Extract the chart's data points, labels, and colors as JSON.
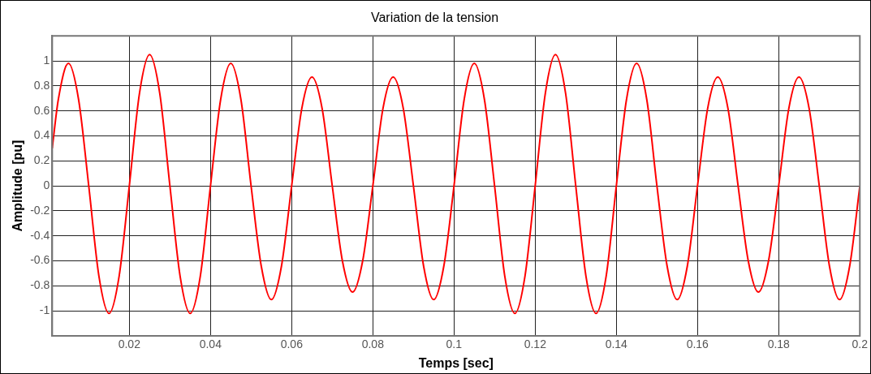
{
  "chart_data": {
    "type": "line",
    "title": "Variation de la tension",
    "xlabel": "Temps [sec]",
    "ylabel": "Amplitude [pu]",
    "xlim": [
      0.001,
      0.2
    ],
    "xticks": [
      0.02,
      0.04,
      0.06,
      0.08,
      0.1,
      0.12,
      0.14,
      0.16,
      0.18,
      0.2
    ],
    "ylim": [
      -1.2,
      1.2
    ],
    "yticks": [
      -1,
      -0.8,
      -0.6,
      -0.4,
      -0.2,
      0,
      0.2,
      0.4,
      0.6,
      0.8,
      1
    ],
    "grid": true,
    "legend": false,
    "marker": "none",
    "line_style": "solid",
    "series": [
      {
        "color": "#ff0000",
        "x": [
          0.001,
          0.0025,
          0.005,
          0.0075,
          0.01,
          0.0125,
          0.015,
          0.0175,
          0.02,
          0.0225,
          0.025,
          0.0275,
          0.03,
          0.0325,
          0.035,
          0.0375,
          0.04,
          0.0425,
          0.045,
          0.0475,
          0.05,
          0.0525,
          0.055,
          0.0575,
          0.06,
          0.0625,
          0.065,
          0.0675,
          0.07,
          0.0725,
          0.075,
          0.0775,
          0.08,
          0.0825,
          0.085,
          0.0875,
          0.09,
          0.0925,
          0.095,
          0.0975,
          0.1,
          0.1025,
          0.105,
          0.1075,
          0.11,
          0.1125,
          0.115,
          0.1175,
          0.12,
          0.1225,
          0.125,
          0.1275,
          0.13,
          0.1325,
          0.135,
          0.1375,
          0.14,
          0.1425,
          0.145,
          0.1475,
          0.15,
          0.1525,
          0.155,
          0.1575,
          0.16,
          0.1625,
          0.165,
          0.1675,
          0.17,
          0.1725,
          0.175,
          0.1775,
          0.18,
          0.1825,
          0.185,
          0.1875,
          0.19,
          0.1925,
          0.195,
          0.1975,
          0.2
        ],
        "values": [
          0.3,
          0.69,
          0.98,
          0.69,
          0,
          -0.72,
          -1.02,
          -0.72,
          0,
          0.74,
          1.05,
          0.74,
          0,
          -0.72,
          -1.02,
          -0.72,
          0,
          0.69,
          0.98,
          0.69,
          0,
          -0.64,
          -0.91,
          -0.64,
          0,
          0.62,
          0.87,
          0.62,
          0,
          -0.6,
          -0.85,
          -0.6,
          0,
          0.62,
          0.87,
          0.62,
          0,
          -0.64,
          -0.91,
          -0.64,
          0,
          0.69,
          0.98,
          0.69,
          0,
          -0.72,
          -1.02,
          -0.72,
          0,
          0.74,
          1.05,
          0.74,
          0,
          -0.72,
          -1.02,
          -0.72,
          0,
          0.69,
          0.98,
          0.69,
          0,
          -0.64,
          -0.91,
          -0.64,
          0,
          0.62,
          0.87,
          0.62,
          0,
          -0.6,
          -0.85,
          -0.6,
          0,
          0.62,
          0.87,
          0.62,
          0,
          -0.64,
          -0.91,
          -0.64,
          0
        ]
      }
    ]
  }
}
